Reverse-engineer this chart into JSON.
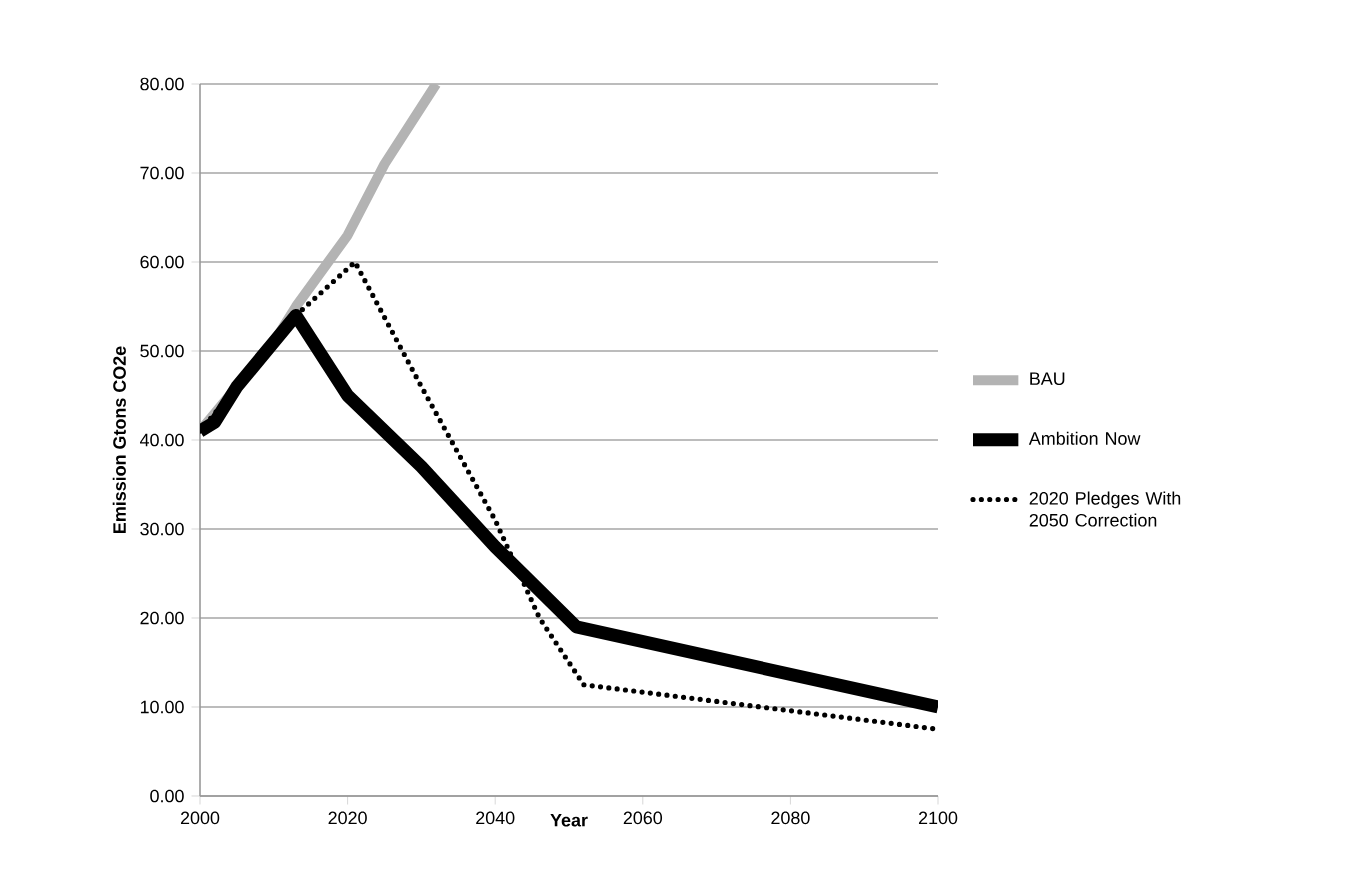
{
  "chart_data": {
    "type": "line",
    "xlabel": "Year",
    "ylabel": "Emission Gtons CO2e",
    "xlim": [
      2000,
      2100
    ],
    "ylim": [
      0,
      80
    ],
    "xticks": [
      2000,
      2020,
      2040,
      2060,
      2080,
      2100
    ],
    "yticks": [
      {
        "value": 0,
        "label": "0.00"
      },
      {
        "value": 10,
        "label": "10.00"
      },
      {
        "value": 20,
        "label": "20.00"
      },
      {
        "value": 30,
        "label": "30.00"
      },
      {
        "value": 40,
        "label": "40.00"
      },
      {
        "value": 50,
        "label": "50.00"
      },
      {
        "value": 60,
        "label": "60.00"
      },
      {
        "value": 70,
        "label": "70.00"
      },
      {
        "value": 80,
        "label": "80.00"
      }
    ],
    "grid": "y",
    "legend": "right",
    "marker": "none",
    "series": [
      {
        "name": "BAU",
        "color": "#b3b3b3",
        "line_style": "solid",
        "x": [
          2000,
          2005,
          2010,
          2013,
          2020,
          2025,
          2032
        ],
        "values": [
          41,
          46,
          51,
          55,
          63,
          71,
          80
        ]
      },
      {
        "name": "Ambition Now",
        "color": "#000000",
        "line_style": "solid",
        "x": [
          2000,
          2002,
          2005,
          2010,
          2013,
          2020,
          2030,
          2040,
          2051,
          2100
        ],
        "values": [
          41,
          42,
          46,
          51,
          54,
          45,
          37,
          28,
          19,
          10
        ]
      },
      {
        "name": "2020 Pledges With 2050 Correction",
        "color": "#000000",
        "line_style": "dotted",
        "x": [
          2000,
          2005,
          2010,
          2013,
          2021,
          2030,
          2040,
          2046,
          2052,
          2100
        ],
        "values": [
          41,
          46,
          51,
          54,
          60,
          46,
          31,
          20,
          12.5,
          7.5
        ]
      }
    ]
  }
}
